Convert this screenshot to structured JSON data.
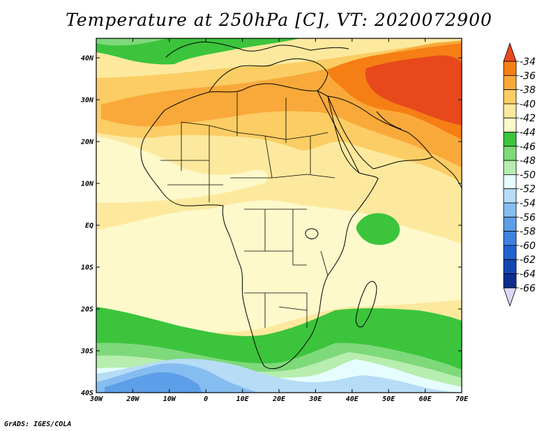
{
  "title": "Temperature at 250hPa [C], VT: 2020072900",
  "credit": "GrADS: IGES/COLA",
  "map": {
    "lon_range": [
      -30,
      75
    ],
    "lat_range": [
      -40,
      45
    ],
    "lon_ticks": [
      "30W",
      "20W",
      "10W",
      "0",
      "10E",
      "20E",
      "30E",
      "40E",
      "50E",
      "60E",
      "70E"
    ],
    "lat_ticks": [
      "40N",
      "30N",
      "20N",
      "10N",
      "EQ",
      "10S",
      "20S",
      "30S",
      "40S"
    ],
    "field_colors": {
      "m34": "#e8491c",
      "m36": "#f57f15",
      "m38": "#f9a93a",
      "m40": "#fbcd64",
      "m42": "#fde99e",
      "m44": "#fdf9cb",
      "m46": "#3cc43c",
      "m48": "#7ed97a",
      "m50": "#b7edae",
      "m52": "#e6fdff",
      "m54": "#b6dcf6",
      "m56": "#86bdf0",
      "m58": "#5d9ee8"
    }
  },
  "colorbar": {
    "labels": [
      "-34",
      "-36",
      "-38",
      "-40",
      "-42",
      "-44",
      "-46",
      "-48",
      "-50",
      "-52",
      "-54",
      "-56",
      "-58",
      "-60",
      "-62",
      "-64",
      "-66"
    ],
    "colors": [
      "#f57f15",
      "#f9a93a",
      "#fbcd64",
      "#fde99e",
      "#fdf9cb",
      "#3cc43c",
      "#7ed97a",
      "#b7edae",
      "#e6fdff",
      "#b6dcf6",
      "#86bdf0",
      "#5d9ee8",
      "#3f81e0",
      "#2262cf",
      "#1446b3",
      "#0b2d8f"
    ],
    "top_arrow_color": "#e8491c",
    "bottom_arrow_color": "#ddd7f4"
  }
}
